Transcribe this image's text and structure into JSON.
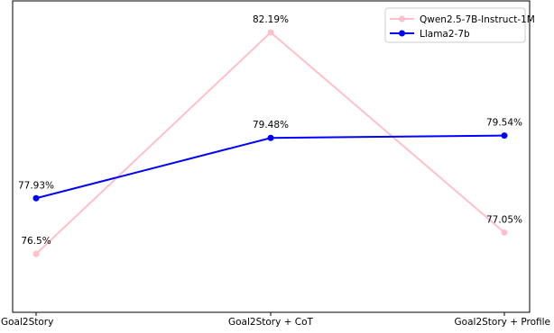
{
  "chart_data": {
    "type": "line",
    "title": "",
    "xlabel": "",
    "ylabel": "",
    "categories": [
      "Goal2Story",
      "Goal2Story + CoT",
      "Goal2Story + Profile"
    ],
    "ylim": [
      75.0,
      83.0
    ],
    "grid": false,
    "legend_position": "top-right",
    "series": [
      {
        "name": "Qwen2.5-7B-Instruct-1M",
        "color": "#ffc0cb",
        "values": [
          76.5,
          82.19,
          77.05
        ],
        "labels": [
          "76.5%",
          "82.19%",
          "77.05%"
        ]
      },
      {
        "name": "Llama2-7b",
        "color": "#0000ff",
        "values": [
          77.93,
          79.48,
          79.54
        ],
        "labels": [
          "77.93%",
          "79.48%",
          "79.54%"
        ]
      }
    ]
  }
}
